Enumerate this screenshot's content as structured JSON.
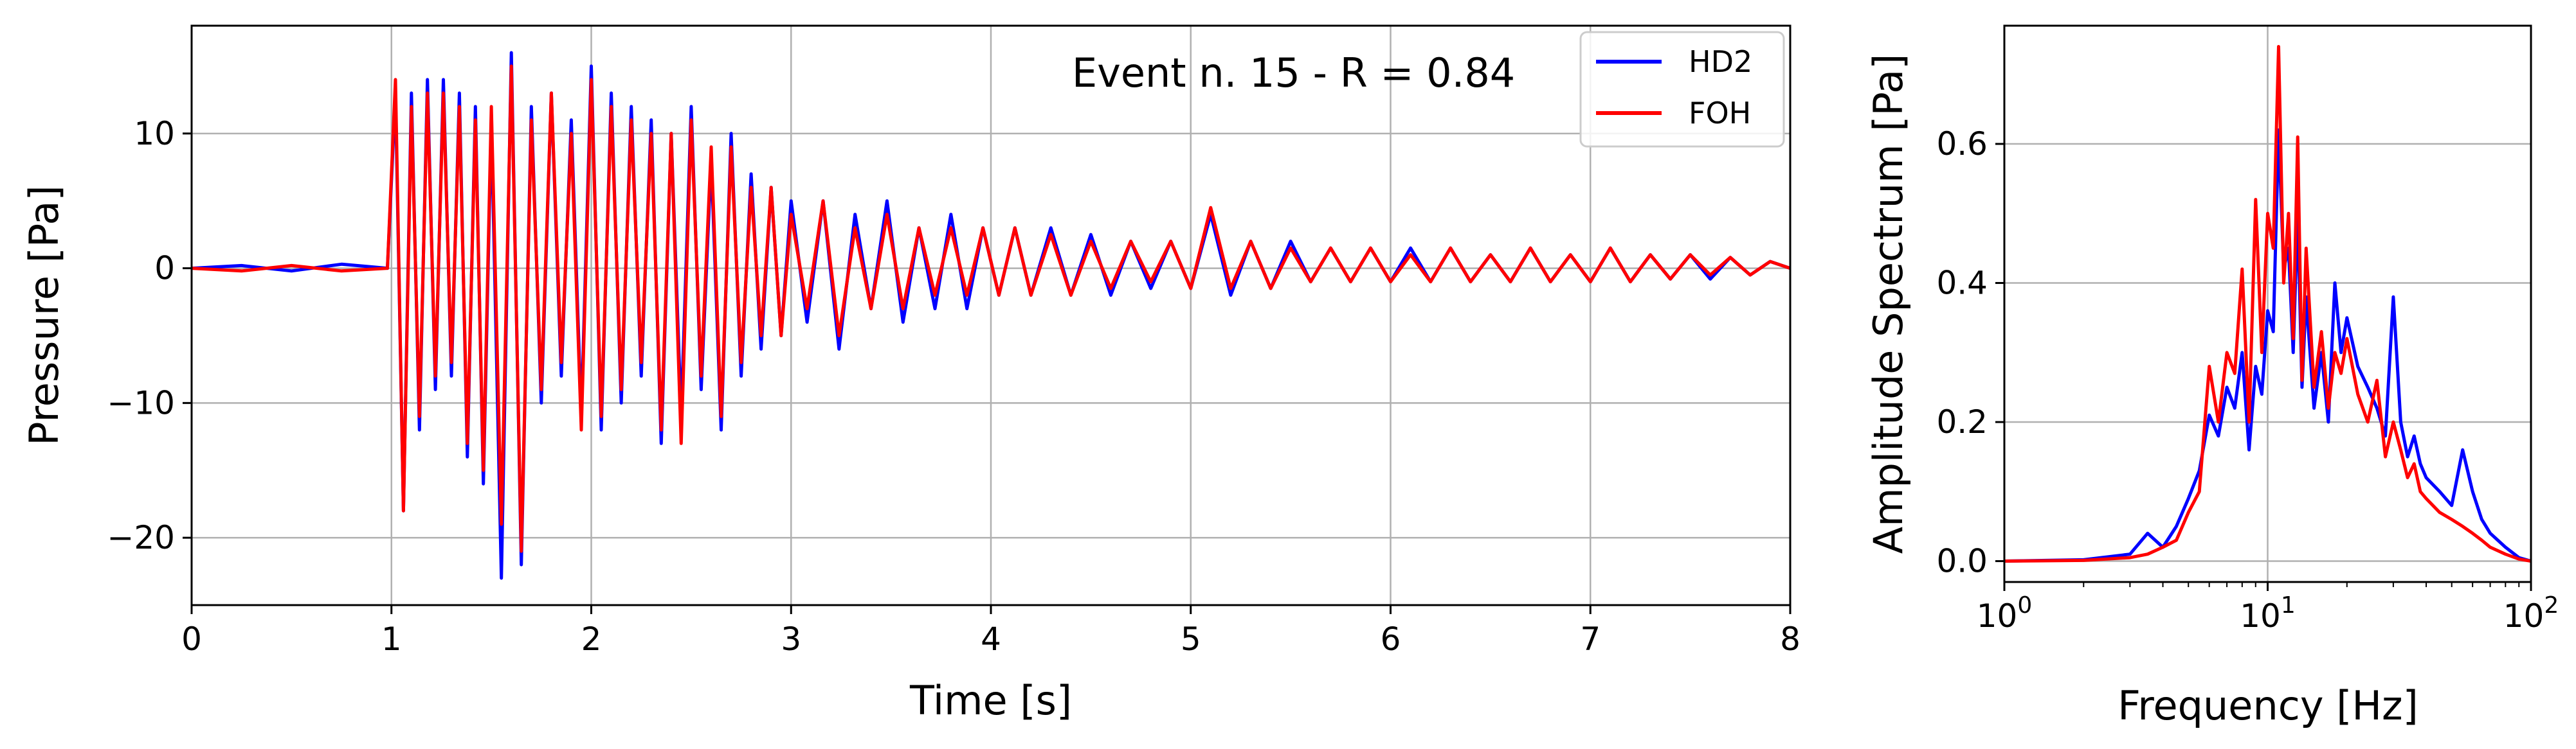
{
  "colors": {
    "HD2": "#0000ff",
    "FOH": "#ff0000",
    "grid": "#b0b0b0",
    "frame": "#000000"
  },
  "chart_data": [
    {
      "type": "line",
      "title": "",
      "annotation": "Event n. 15 - R = 0.84",
      "xlabel": "Time [s]",
      "ylabel": "Pressure [Pa]",
      "xlim": [
        0,
        8
      ],
      "ylim": [
        -25,
        18
      ],
      "xticks": [
        0,
        1,
        2,
        3,
        4,
        5,
        6,
        7,
        8
      ],
      "xtick_labels": [
        "0",
        "1",
        "2",
        "3",
        "4",
        "5",
        "6",
        "7",
        "8"
      ],
      "yticks": [
        -20,
        -10,
        0,
        10
      ],
      "ytick_labels": [
        "−20",
        "−10",
        "0",
        "10"
      ],
      "grid": true,
      "legend": {
        "position": "top-right",
        "entries": [
          "HD2",
          "FOH"
        ]
      },
      "series": [
        {
          "name": "HD2",
          "color": "#0000ff",
          "x": [
            0,
            0.25,
            0.5,
            0.75,
            0.98,
            1.02,
            1.06,
            1.1,
            1.14,
            1.18,
            1.22,
            1.26,
            1.3,
            1.34,
            1.38,
            1.42,
            1.46,
            1.5,
            1.55,
            1.6,
            1.65,
            1.7,
            1.75,
            1.8,
            1.85,
            1.9,
            1.95,
            2.0,
            2.05,
            2.1,
            2.15,
            2.2,
            2.25,
            2.3,
            2.35,
            2.4,
            2.45,
            2.5,
            2.55,
            2.6,
            2.65,
            2.7,
            2.75,
            2.8,
            2.85,
            2.9,
            2.95,
            3.0,
            3.08,
            3.16,
            3.24,
            3.32,
            3.4,
            3.48,
            3.56,
            3.64,
            3.72,
            3.8,
            3.88,
            3.96,
            4.04,
            4.12,
            4.2,
            4.3,
            4.4,
            4.5,
            4.6,
            4.7,
            4.8,
            4.9,
            5.0,
            5.1,
            5.2,
            5.3,
            5.4,
            5.5,
            5.6,
            5.7,
            5.8,
            5.9,
            6.0,
            6.1,
            6.2,
            6.3,
            6.4,
            6.5,
            6.6,
            6.7,
            6.8,
            6.9,
            7.0,
            7.1,
            7.2,
            7.3,
            7.4,
            7.5,
            7.6,
            7.7,
            7.8,
            7.9,
            8.0
          ],
          "y": [
            0,
            0.2,
            -0.2,
            0.3,
            0,
            13,
            -18,
            13,
            -12,
            14,
            -9,
            14,
            -8,
            13,
            -14,
            12,
            -16,
            11,
            -23,
            16,
            -22,
            12,
            -10,
            13,
            -8,
            11,
            -11,
            15,
            -12,
            13,
            -10,
            12,
            -8,
            11,
            -13,
            10,
            -11,
            12,
            -9,
            8,
            -12,
            10,
            -8,
            7,
            -6,
            6,
            -5,
            5,
            -4,
            5,
            -6,
            4,
            -3,
            5,
            -4,
            3,
            -3,
            4,
            -3,
            3,
            -2,
            3,
            -2,
            3,
            -2,
            2.5,
            -2,
            2,
            -1.5,
            2,
            -1.5,
            4,
            -2,
            2,
            -1.5,
            2,
            -1,
            1.5,
            -1,
            1.5,
            -1,
            1.5,
            -1,
            1.5,
            -1,
            1,
            -1,
            1.5,
            -1,
            1,
            -1,
            1.5,
            -1,
            1,
            -0.8,
            1,
            -0.8,
            0.8,
            -0.5,
            0.5,
            0
          ]
        },
        {
          "name": "FOH",
          "color": "#ff0000",
          "x": [
            0,
            0.25,
            0.5,
            0.75,
            0.98,
            1.02,
            1.06,
            1.1,
            1.14,
            1.18,
            1.22,
            1.26,
            1.3,
            1.34,
            1.38,
            1.42,
            1.46,
            1.5,
            1.55,
            1.6,
            1.65,
            1.7,
            1.75,
            1.8,
            1.85,
            1.9,
            1.95,
            2.0,
            2.05,
            2.1,
            2.15,
            2.2,
            2.25,
            2.3,
            2.35,
            2.4,
            2.45,
            2.5,
            2.55,
            2.6,
            2.65,
            2.7,
            2.75,
            2.8,
            2.85,
            2.9,
            2.95,
            3.0,
            3.08,
            3.16,
            3.24,
            3.32,
            3.4,
            3.48,
            3.56,
            3.64,
            3.72,
            3.8,
            3.88,
            3.96,
            4.04,
            4.12,
            4.2,
            4.3,
            4.4,
            4.5,
            4.6,
            4.7,
            4.8,
            4.9,
            5.0,
            5.1,
            5.2,
            5.3,
            5.4,
            5.5,
            5.6,
            5.7,
            5.8,
            5.9,
            6.0,
            6.1,
            6.2,
            6.3,
            6.4,
            6.5,
            6.6,
            6.7,
            6.8,
            6.9,
            7.0,
            7.1,
            7.2,
            7.3,
            7.4,
            7.5,
            7.6,
            7.7,
            7.8,
            7.9,
            8.0
          ],
          "y": [
            0,
            -0.2,
            0.2,
            -0.2,
            0,
            14,
            -18,
            12,
            -11,
            13,
            -8,
            13,
            -7,
            12,
            -13,
            11,
            -15,
            12,
            -19,
            15,
            -21,
            11,
            -9,
            13,
            -7,
            10,
            -12,
            14,
            -11,
            12,
            -9,
            11,
            -7,
            10,
            -12,
            10,
            -13,
            11,
            -8,
            9,
            -11,
            9,
            -7,
            6,
            -5,
            6,
            -5,
            4,
            -3,
            5,
            -5,
            3,
            -3,
            4,
            -3,
            3,
            -2,
            3,
            -2,
            3,
            -2,
            3,
            -2,
            2.5,
            -2,
            2,
            -1.5,
            2,
            -1,
            2,
            -1.5,
            4.5,
            -1.5,
            2,
            -1.5,
            1.5,
            -1,
            1.5,
            -1,
            1.5,
            -1,
            1,
            -1,
            1.5,
            -1,
            1,
            -1,
            1.5,
            -1,
            1,
            -1,
            1.5,
            -1,
            1,
            -0.8,
            1,
            -0.5,
            0.8,
            -0.5,
            0.5,
            0
          ]
        }
      ]
    },
    {
      "type": "line",
      "title": "",
      "xlabel": "Frequency [Hz]",
      "ylabel": "Amplitude Spectrum [Pa]",
      "xscale": "log",
      "xlim": [
        1,
        100
      ],
      "ylim": [
        -0.03,
        0.77
      ],
      "xticks": [
        1,
        10,
        100
      ],
      "xtick_labels": [
        {
          "base": "10",
          "exp": "0"
        },
        {
          "base": "10",
          "exp": "1"
        },
        {
          "base": "10",
          "exp": "2"
        }
      ],
      "yticks": [
        0.0,
        0.2,
        0.4,
        0.6
      ],
      "ytick_labels": [
        "0.0",
        "0.2",
        "0.4",
        "0.6"
      ],
      "grid": true,
      "legend": null,
      "series": [
        {
          "name": "HD2",
          "color": "#0000ff",
          "x": [
            1,
            2,
            3,
            3.5,
            4,
            4.5,
            5,
            5.5,
            6,
            6.5,
            7,
            7.5,
            8,
            8.5,
            9,
            9.5,
            10,
            10.5,
            11,
            11.5,
            12,
            12.5,
            13,
            13.5,
            14,
            15,
            16,
            17,
            18,
            19,
            20,
            22,
            24,
            26,
            28,
            30,
            32,
            34,
            36,
            38,
            40,
            45,
            50,
            55,
            60,
            65,
            70,
            80,
            90,
            100
          ],
          "y": [
            0,
            0.002,
            0.01,
            0.04,
            0.02,
            0.05,
            0.09,
            0.13,
            0.21,
            0.18,
            0.25,
            0.22,
            0.3,
            0.16,
            0.28,
            0.24,
            0.36,
            0.33,
            0.62,
            0.42,
            0.45,
            0.3,
            0.5,
            0.25,
            0.38,
            0.22,
            0.3,
            0.2,
            0.4,
            0.3,
            0.35,
            0.28,
            0.25,
            0.22,
            0.18,
            0.38,
            0.2,
            0.15,
            0.18,
            0.14,
            0.12,
            0.1,
            0.08,
            0.16,
            0.1,
            0.06,
            0.04,
            0.02,
            0.005,
            0
          ]
        },
        {
          "name": "FOH",
          "color": "#ff0000",
          "x": [
            1,
            2,
            3,
            3.5,
            4,
            4.5,
            5,
            5.5,
            6,
            6.5,
            7,
            7.5,
            8,
            8.5,
            9,
            9.5,
            10,
            10.5,
            11,
            11.5,
            12,
            12.5,
            13,
            13.5,
            14,
            15,
            16,
            17,
            18,
            19,
            20,
            22,
            24,
            26,
            28,
            30,
            32,
            34,
            36,
            38,
            40,
            45,
            50,
            55,
            60,
            65,
            70,
            80,
            90,
            100
          ],
          "y": [
            0,
            0.001,
            0.005,
            0.01,
            0.02,
            0.03,
            0.07,
            0.1,
            0.28,
            0.2,
            0.3,
            0.27,
            0.42,
            0.2,
            0.52,
            0.3,
            0.5,
            0.45,
            0.74,
            0.4,
            0.5,
            0.32,
            0.61,
            0.26,
            0.45,
            0.25,
            0.33,
            0.22,
            0.3,
            0.27,
            0.32,
            0.24,
            0.2,
            0.26,
            0.15,
            0.2,
            0.16,
            0.12,
            0.14,
            0.1,
            0.09,
            0.07,
            0.06,
            0.05,
            0.04,
            0.03,
            0.02,
            0.01,
            0.003,
            0
          ]
        }
      ]
    }
  ]
}
